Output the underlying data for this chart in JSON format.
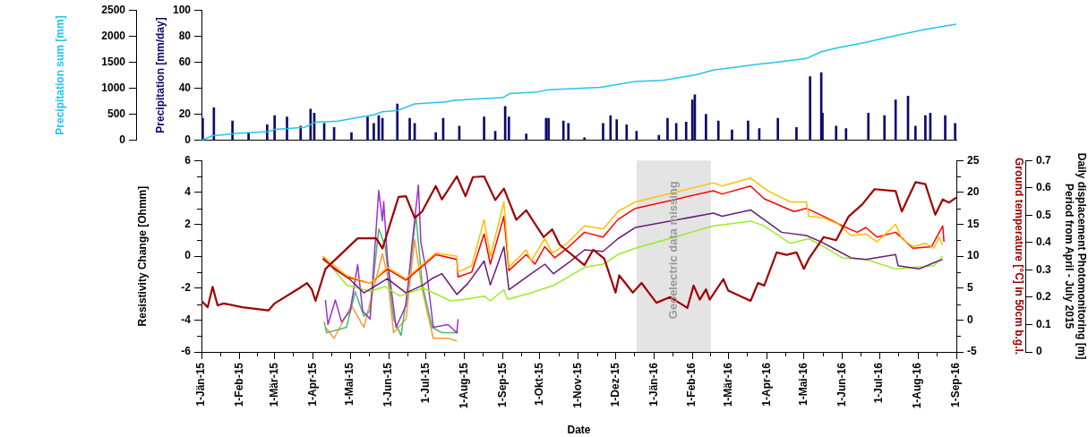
{
  "chart_data": [
    {
      "type": "line",
      "ylabel": "Precipitation [mm/day]",
      "y2label": "Precipitation sum [mm]",
      "tick_labels": "y",
      "marker": "none",
      "xlim": [
        "2015-01-01",
        "2016-09-01"
      ],
      "ylim": [
        0,
        100
      ],
      "yticks": [
        0,
        20,
        40,
        60,
        80,
        100
      ],
      "y2lim": [
        0,
        2500
      ],
      "y2ticks": [
        0,
        500,
        1000,
        1500,
        2000,
        2500
      ],
      "series": [
        {
          "type": "bar",
          "color": "#0a0a6e",
          "x": [
            "2015-01-02",
            "2015-01-11",
            "2015-01-26",
            "2015-02-08",
            "2015-02-23",
            "2015-03-01",
            "2015-03-11",
            "2015-03-22",
            "2015-03-30",
            "2015-04-02",
            "2015-04-10",
            "2015-04-18",
            "2015-05-02",
            "2015-05-15",
            "2015-05-20",
            "2015-05-24",
            "2015-05-27",
            "2015-06-08",
            "2015-06-18",
            "2015-06-22",
            "2015-07-09",
            "2015-07-15",
            "2015-07-28",
            "2015-08-17",
            "2015-08-26",
            "2015-09-03",
            "2015-09-06",
            "2015-09-20",
            "2015-10-06",
            "2015-10-08",
            "2015-10-20",
            "2015-10-24",
            "2015-11-06",
            "2015-11-21",
            "2015-11-27",
            "2015-12-02",
            "2015-12-10",
            "2015-12-18",
            "2016-01-05",
            "2016-01-12",
            "2016-01-19",
            "2016-01-27",
            "2016-02-01",
            "2016-02-03",
            "2016-02-12",
            "2016-02-22",
            "2016-03-04",
            "2016-03-17",
            "2016-03-26",
            "2016-04-10",
            "2016-04-25",
            "2016-05-06",
            "2016-05-15",
            "2016-05-16",
            "2016-05-27",
            "2016-06-04",
            "2016-06-22",
            "2016-07-05",
            "2016-07-14",
            "2016-07-24",
            "2016-07-30",
            "2016-08-07",
            "2016-08-11",
            "2016-08-23",
            "2016-08-31"
          ],
          "values": [
            17,
            25,
            15,
            6,
            12,
            19,
            18,
            11,
            24,
            21,
            13,
            10,
            6,
            18,
            13,
            19,
            17,
            28,
            17,
            13,
            6,
            17,
            11,
            18,
            7,
            26,
            18,
            5,
            17,
            17,
            15,
            13,
            2,
            13,
            19,
            16,
            12,
            7,
            4,
            17,
            13,
            14,
            31,
            35,
            20,
            15,
            8,
            15,
            9,
            17,
            10,
            49,
            52,
            21,
            11,
            9,
            21,
            19,
            31,
            34,
            11,
            19,
            21,
            19,
            13
          ]
        },
        {
          "axis": "y2",
          "color": "#22c4f0",
          "x": [
            "2015-01-01",
            "2015-01-10",
            "2015-01-19",
            "2015-01-31",
            "2015-02-24",
            "2015-03-01",
            "2015-03-25",
            "2015-04-03",
            "2015-04-21",
            "2015-05-07",
            "2015-05-20",
            "2015-05-27",
            "2015-06-08",
            "2015-06-22",
            "2015-07-17",
            "2015-07-24",
            "2015-08-14",
            "2015-09-01",
            "2015-09-07",
            "2015-09-29",
            "2015-10-08",
            "2015-11-19",
            "2015-12-17",
            "2016-01-08",
            "2016-02-04",
            "2016-02-18",
            "2016-03-25",
            "2016-04-09",
            "2016-05-03",
            "2016-05-15",
            "2016-05-27",
            "2016-06-20",
            "2016-07-14",
            "2016-08-07",
            "2016-09-01"
          ],
          "values": [
            0,
            90,
            110,
            140,
            170,
            210,
            250,
            350,
            370,
            440,
            490,
            550,
            570,
            700,
            740,
            770,
            800,
            820,
            900,
            930,
            970,
            1020,
            1130,
            1150,
            1260,
            1350,
            1460,
            1500,
            1570,
            1700,
            1770,
            1880,
            2010,
            2130,
            2230
          ]
        }
      ]
    },
    {
      "type": "line",
      "xlabel": "Date",
      "ylabel": "Resistivity Change [Ohmm]",
      "y2label": "Ground temperature [°C] in 50cm b.g.l.",
      "y3label": "Daily displacement Photomonitoring [m]\nPeriod from April - July 2015",
      "marker": "none",
      "xlim": [
        "2015-01-01",
        "2016-09-01"
      ],
      "xticks": [
        {
          "value": "2015-01-01",
          "label": "1-Jän-15"
        },
        {
          "value": "2015-01-16",
          "label": null
        },
        {
          "value": "2015-02-01",
          "label": "1-Feb-15"
        },
        {
          "value": "2015-02-15",
          "label": null
        },
        {
          "value": "2015-03-01",
          "label": "1-Mär-15"
        },
        {
          "value": "2015-03-16",
          "label": null
        },
        {
          "value": "2015-04-01",
          "label": "1-Apr-15"
        },
        {
          "value": "2015-04-16",
          "label": null
        },
        {
          "value": "2015-05-01",
          "label": "1-Mai-15"
        },
        {
          "value": "2015-05-16",
          "label": null
        },
        {
          "value": "2015-06-01",
          "label": "1-Jun-15"
        },
        {
          "value": "2015-06-16",
          "label": null
        },
        {
          "value": "2015-07-01",
          "label": "1-Jul-15"
        },
        {
          "value": "2015-07-16",
          "label": null
        },
        {
          "value": "2015-08-01",
          "label": "1-Aug-15"
        },
        {
          "value": "2015-08-16",
          "label": null
        },
        {
          "value": "2015-09-01",
          "label": "1-Sep-15"
        },
        {
          "value": "2015-09-16",
          "label": null
        },
        {
          "value": "2015-10-01",
          "label": "1-Okt-15"
        },
        {
          "value": "2015-10-16",
          "label": null
        },
        {
          "value": "2015-11-01",
          "label": "1-Nov-15"
        },
        {
          "value": "2015-11-16",
          "label": null
        },
        {
          "value": "2015-12-01",
          "label": "1-Dez-15"
        },
        {
          "value": "2015-12-16",
          "label": null
        },
        {
          "value": "2016-01-01",
          "label": "1-Jän-16"
        },
        {
          "value": "2016-01-16",
          "label": null
        },
        {
          "value": "2016-02-01",
          "label": "1-Feb-16"
        },
        {
          "value": "2016-02-15",
          "label": null
        },
        {
          "value": "2016-03-01",
          "label": "1-Mär-16"
        },
        {
          "value": "2016-03-16",
          "label": null
        },
        {
          "value": "2016-04-01",
          "label": "1-Apr-16"
        },
        {
          "value": "2016-04-16",
          "label": null
        },
        {
          "value": "2016-05-01",
          "label": "1-Mai-16"
        },
        {
          "value": "2016-05-16",
          "label": null
        },
        {
          "value": "2016-06-01",
          "label": "1-Jun-16"
        },
        {
          "value": "2016-06-16",
          "label": null
        },
        {
          "value": "2016-07-01",
          "label": "1-Jul-16"
        },
        {
          "value": "2016-07-16",
          "label": null
        },
        {
          "value": "2016-08-01",
          "label": "1-Aug-16"
        },
        {
          "value": "2016-08-16",
          "label": null
        },
        {
          "value": "2016-09-01",
          "label": "1-Sep-16"
        }
      ],
      "ylim": [
        -6,
        6
      ],
      "yticks": [
        -6,
        {
          "value": -5,
          "label": null
        },
        -4,
        {
          "value": -3,
          "label": null
        },
        -2,
        {
          "value": -1,
          "label": null
        },
        0,
        {
          "value": 1,
          "label": null
        },
        2,
        {
          "value": 3,
          "label": null
        },
        4,
        {
          "value": 5,
          "label": null
        },
        6
      ],
      "y2lim": [
        -5,
        25
      ],
      "y2ticks": [
        -5,
        {
          "value": -2.5,
          "label": null
        },
        0,
        {
          "value": 2.5,
          "label": null
        },
        5,
        {
          "value": 7.5,
          "label": null
        },
        10,
        {
          "value": 12.5,
          "label": null
        },
        15,
        {
          "value": 17.5,
          "label": null
        },
        20,
        {
          "value": 22.5,
          "label": null
        },
        25
      ],
      "y3lim": [
        0,
        0.7
      ],
      "y3ticks": [
        0,
        0.1,
        0.2,
        0.3,
        0.4,
        0.5,
        0.6,
        0.7
      ],
      "bands": [
        {
          "axis": "x",
          "from": "2015-12-18",
          "to": "2016-02-16",
          "label": "Geoelectric data missing",
          "color": "#e4e4e4"
        }
      ],
      "series": [
        {
          "axis": "y2",
          "color": "#a00000",
          "x": [
            "2015-01-01",
            "2015-01-06",
            "2015-01-10",
            "2015-01-14",
            "2015-01-19",
            "2015-02-03",
            "2015-02-24",
            "2015-03-01",
            "2015-03-21",
            "2015-03-27",
            "2015-03-31",
            "2015-04-03",
            "2015-04-11",
            "2015-05-07",
            "2015-05-22",
            "2015-05-27",
            "2015-06-09",
            "2015-06-15",
            "2015-06-22",
            "2015-06-28",
            "2015-07-09",
            "2015-07-14",
            "2015-07-26",
            "2015-08-02",
            "2015-08-08",
            "2015-08-17",
            "2015-08-26",
            "2015-09-02",
            "2015-09-12",
            "2015-09-20",
            "2015-10-04",
            "2015-10-11",
            "2015-10-17",
            "2015-11-06",
            "2015-11-13",
            "2015-11-22",
            "2015-12-01",
            "2015-12-04",
            "2015-12-15",
            "2015-12-22",
            "2016-01-03",
            "2016-01-14",
            "2016-01-28",
            "2016-02-02",
            "2016-02-07",
            "2016-02-12",
            "2016-02-15",
            "2016-02-26",
            "2016-03-01",
            "2016-03-19",
            "2016-03-25",
            "2016-03-30",
            "2016-04-09",
            "2016-04-17",
            "2016-04-25",
            "2016-05-01",
            "2016-05-05",
            "2016-05-17",
            "2016-05-27",
            "2016-06-06",
            "2016-06-17",
            "2016-06-27",
            "2016-07-14",
            "2016-07-19",
            "2016-07-30",
            "2016-08-07",
            "2016-08-15",
            "2016-08-21",
            "2016-08-26",
            "2016-09-01"
          ],
          "values": [
            3.0,
            2.0,
            5.2,
            2.3,
            2.6,
            2.0,
            1.5,
            2.6,
            5.0,
            5.8,
            4.8,
            3.0,
            8.0,
            12.8,
            12.8,
            11.2,
            19.3,
            19.4,
            16.0,
            17.0,
            21.0,
            18.9,
            22.5,
            19.4,
            22.4,
            22.5,
            18.8,
            20.6,
            15.7,
            17.2,
            13.0,
            14.2,
            11.8,
            8.6,
            11.0,
            9.6,
            4.3,
            7.0,
            4.3,
            5.8,
            2.7,
            3.6,
            1.9,
            5.4,
            3.2,
            4.8,
            3.2,
            6.4,
            4.6,
            3.0,
            5.8,
            5.4,
            10.6,
            10.2,
            10.6,
            8.0,
            9.6,
            13.0,
            12.5,
            16.2,
            18.1,
            20.5,
            20.2,
            17.0,
            21.6,
            21.3,
            16.5,
            18.9,
            18.4,
            19.2
          ]
        },
        {
          "color": "#ffc000",
          "x": [
            "2015-04-09",
            "2015-04-28",
            "2015-05-17",
            "2015-05-31",
            "2015-06-15",
            "2015-07-09",
            "2015-07-26",
            "2015-07-27",
            "2015-08-07",
            "2015-08-17",
            "2015-08-22",
            "2015-09-02",
            "2015-09-06",
            "2015-09-20",
            "2015-09-24",
            "2015-10-05",
            "2015-10-11",
            "2015-10-23",
            "2015-11-06",
            "2015-11-21",
            "2015-12-03",
            "2015-12-17",
            "2016-02-18",
            "2016-02-25",
            "2016-03-19",
            "2016-04-02",
            "2016-04-20",
            "2016-05-03",
            "2016-05-05",
            "2016-05-17",
            "2016-05-29",
            "2016-06-08",
            "2016-06-20",
            "2016-06-29",
            "2016-07-14",
            "2016-07-19",
            "2016-07-28",
            "2016-08-07",
            "2016-08-14",
            "2016-08-18",
            "2016-08-21"
          ],
          "values": [
            0.0,
            -1.2,
            -1.7,
            -0.7,
            -1.4,
            0.2,
            0.0,
            -1.0,
            -0.6,
            2.3,
            0.0,
            3.4,
            -0.7,
            0.4,
            -0.3,
            1.1,
            0.2,
            0.8,
            1.9,
            1.7,
            2.8,
            3.4,
            4.6,
            4.4,
            4.9,
            4.1,
            3.4,
            3.4,
            2.5,
            2.4,
            2.0,
            1.3,
            1.4,
            0.9,
            2.0,
            1.1,
            0.6,
            0.8,
            0.5,
            1.2,
            0.7
          ]
        },
        {
          "color": "#ff0000",
          "x": [
            "2015-04-09",
            "2015-04-28",
            "2015-05-17",
            "2015-05-31",
            "2015-06-15",
            "2015-07-09",
            "2015-07-26",
            "2015-07-27",
            "2015-08-07",
            "2015-08-17",
            "2015-08-22",
            "2015-09-02",
            "2015-09-06",
            "2015-09-20",
            "2015-09-27",
            "2015-10-05",
            "2015-10-13",
            "2015-10-23",
            "2015-11-06",
            "2015-11-21",
            "2015-12-03",
            "2015-12-17",
            "2016-02-18",
            "2016-02-25",
            "2016-03-19",
            "2016-03-30",
            "2016-04-23",
            "2016-05-03",
            "2016-05-17",
            "2016-06-01",
            "2016-06-13",
            "2016-06-20",
            "2016-06-29",
            "2016-07-14",
            "2016-07-28",
            "2016-08-12",
            "2016-08-21",
            "2016-08-22"
          ],
          "values": [
            -0.2,
            -1.3,
            -1.7,
            -0.8,
            -1.5,
            0.1,
            -0.2,
            -1.3,
            -1.0,
            1.4,
            -0.5,
            2.5,
            -0.9,
            0.1,
            -0.5,
            0.6,
            -0.1,
            0.5,
            1.5,
            1.2,
            2.3,
            3.0,
            4.1,
            3.9,
            4.4,
            3.6,
            2.8,
            3.0,
            2.5,
            1.9,
            1.5,
            1.8,
            1.2,
            1.5,
            0.5,
            0.6,
            1.9,
            0.9
          ]
        },
        {
          "color": "#6a1b7a",
          "x": [
            "2015-04-09",
            "2015-04-18",
            "2015-04-30",
            "2015-05-12",
            "2015-05-31",
            "2015-06-15",
            "2015-06-29",
            "2015-07-06",
            "2015-07-14",
            "2015-07-26",
            "2015-08-04",
            "2015-08-17",
            "2015-08-22",
            "2015-09-02",
            "2015-09-06",
            "2015-09-24",
            "2015-10-05",
            "2015-10-12",
            "2015-10-26",
            "2015-11-06",
            "2015-11-21",
            "2015-12-03",
            "2015-12-17",
            "2016-02-18",
            "2016-02-25",
            "2016-03-19",
            "2016-04-04",
            "2016-04-13",
            "2016-05-03",
            "2016-05-15",
            "2016-05-27",
            "2016-06-08",
            "2016-06-20",
            "2016-07-14",
            "2016-07-16",
            "2016-08-02",
            "2016-08-14",
            "2016-08-21"
          ],
          "values": [
            -0.1,
            -0.8,
            -1.4,
            -2.3,
            -1.4,
            -2.3,
            -1.8,
            -1.4,
            -1.1,
            -2.4,
            -1.7,
            -0.3,
            -1.8,
            0.6,
            -2.1,
            -1.1,
            -0.5,
            -1.1,
            -0.3,
            0.4,
            0.3,
            1.1,
            1.8,
            2.7,
            2.5,
            2.9,
            2.0,
            1.5,
            1.3,
            0.9,
            0.4,
            -0.1,
            -0.2,
            0.1,
            -0.6,
            -0.8,
            -0.4,
            -0.2
          ]
        },
        {
          "color": "#99ee22",
          "x": [
            "2015-04-09",
            "2015-04-28",
            "2015-05-17",
            "2015-05-29",
            "2015-06-10",
            "2015-06-29",
            "2015-07-21",
            "2015-08-02",
            "2015-08-17",
            "2015-08-22",
            "2015-09-02",
            "2015-09-05",
            "2015-09-24",
            "2015-10-13",
            "2015-11-06",
            "2015-11-21",
            "2015-12-03",
            "2015-12-17",
            "2016-02-18",
            "2016-03-19",
            "2016-03-30",
            "2016-04-20",
            "2016-05-05",
            "2016-05-17",
            "2016-06-01",
            "2016-06-20",
            "2016-07-14",
            "2016-07-28",
            "2016-08-14",
            "2016-08-21"
          ],
          "values": [
            0.0,
            -1.8,
            -2.2,
            -1.9,
            -2.5,
            -2.0,
            -2.8,
            -2.7,
            -2.5,
            -2.8,
            -2.1,
            -2.7,
            -2.3,
            -1.8,
            -0.7,
            -0.5,
            0.1,
            0.5,
            1.9,
            2.2,
            1.9,
            0.8,
            1.1,
            0.6,
            -0.1,
            -0.2,
            -0.8,
            -0.7,
            -0.6,
            0.0
          ]
        },
        {
          "axis": "y3",
          "color": "#9b30d0",
          "x": [
            "2015-04-11",
            "2015-04-13",
            "2015-04-19",
            "2015-04-24",
            "2015-05-01",
            "2015-05-07",
            "2015-05-11",
            "2015-05-17",
            "2015-05-24",
            "2015-05-27",
            "2015-05-28",
            "2015-05-31",
            "2015-06-07",
            "2015-06-15",
            "2015-06-20",
            "2015-06-25",
            "2015-06-27",
            "2015-07-02",
            "2015-07-07",
            "2015-07-19",
            "2015-07-26",
            "2015-07-27"
          ],
          "values": [
            0.19,
            0.1,
            0.19,
            0.11,
            0.15,
            0.32,
            0.15,
            0.12,
            0.59,
            0.48,
            0.55,
            0.34,
            0.09,
            0.17,
            0.4,
            0.61,
            0.4,
            0.28,
            0.09,
            0.1,
            0.07,
            0.12
          ]
        },
        {
          "axis": "y3",
          "color": "#44bb66",
          "x": [
            "2015-04-10",
            "2015-04-12",
            "2015-04-28",
            "2015-05-05",
            "2015-05-12",
            "2015-05-17",
            "2015-05-24",
            "2015-05-29",
            "2015-06-05",
            "2015-06-11",
            "2015-06-17",
            "2015-06-23",
            "2015-06-28",
            "2015-07-06",
            "2015-07-14",
            "2015-07-27"
          ],
          "values": [
            0.11,
            0.07,
            0.09,
            0.22,
            0.13,
            0.15,
            0.45,
            0.39,
            0.12,
            0.06,
            0.25,
            0.5,
            0.25,
            0.09,
            0.07,
            0.07
          ]
        },
        {
          "axis": "y3",
          "color": "#ff9933",
          "x": [
            "2015-04-11",
            "2015-04-18",
            "2015-05-02",
            "2015-05-12",
            "2015-05-27",
            "2015-05-31",
            "2015-06-05",
            "2015-06-15",
            "2015-06-22",
            "2015-06-28",
            "2015-07-07",
            "2015-07-19",
            "2015-07-26"
          ],
          "values": [
            0.09,
            0.05,
            0.17,
            0.09,
            0.36,
            0.28,
            0.07,
            0.12,
            0.41,
            0.23,
            0.05,
            0.05,
            0.04
          ]
        }
      ]
    }
  ]
}
